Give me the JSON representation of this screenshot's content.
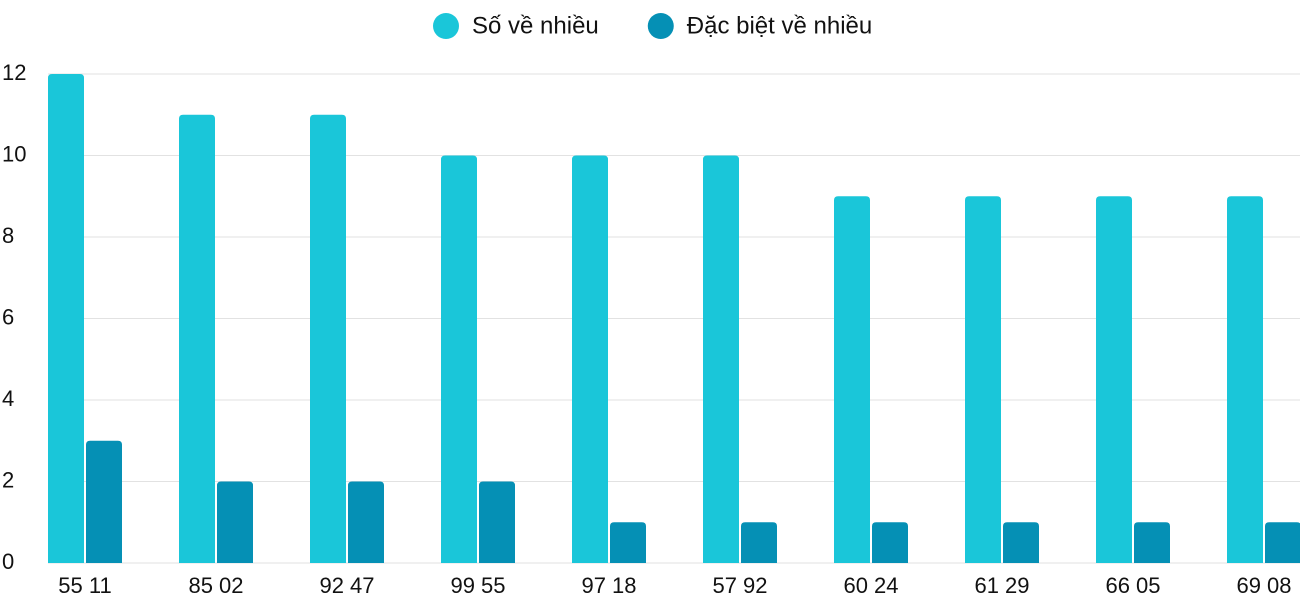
{
  "chart_data": {
    "type": "bar",
    "categories": [
      "55 11",
      "85 02",
      "92 47",
      "99 55",
      "97 18",
      "57 92",
      "60 24",
      "61 29",
      "66 05",
      "69 08"
    ],
    "series": [
      {
        "name": "Số về nhiều",
        "color": "#1ac6d9",
        "values": [
          12,
          11,
          11,
          10,
          10,
          10,
          9,
          9,
          9,
          9
        ]
      },
      {
        "name": "Đặc biệt về nhiều",
        "color": "#0590b5",
        "values": [
          3,
          2,
          2,
          2,
          1,
          1,
          1,
          1,
          1,
          1
        ]
      }
    ],
    "ylim": [
      0,
      12
    ],
    "yticks": [
      0,
      2,
      4,
      6,
      8,
      10,
      12
    ],
    "grid": true,
    "legend": "top"
  }
}
